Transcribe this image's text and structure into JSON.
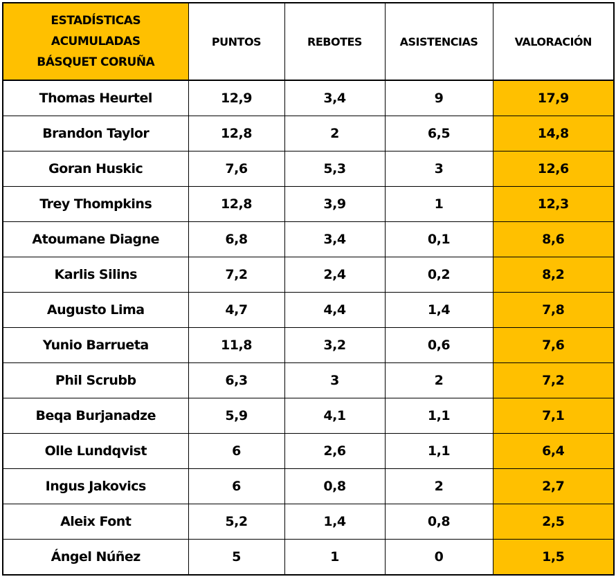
{
  "table_title": [
    "ESTADÍSTICAS",
    "ACUMULADAS",
    "BÁSQUET CORUÑA"
  ],
  "columns": [
    "PUNTOS",
    "REBOTES",
    "ASISTENCIAS",
    "VALORACIÓN"
  ],
  "highlight_color": "#ffc000",
  "rows": [
    {
      "player": "Thomas Heurtel",
      "puntos": "12,9",
      "rebotes": "3,4",
      "asistencias": "9",
      "valoracion": "17,9"
    },
    {
      "player": "Brandon Taylor",
      "puntos": "12,8",
      "rebotes": "2",
      "asistencias": "6,5",
      "valoracion": "14,8"
    },
    {
      "player": "Goran Huskic",
      "puntos": "7,6",
      "rebotes": "5,3",
      "asistencias": "3",
      "valoracion": "12,6"
    },
    {
      "player": "Trey Thompkins",
      "puntos": "12,8",
      "rebotes": "3,9",
      "asistencias": "1",
      "valoracion": "12,3"
    },
    {
      "player": "Atoumane Diagne",
      "puntos": "6,8",
      "rebotes": "3,4",
      "asistencias": "0,1",
      "valoracion": "8,6"
    },
    {
      "player": "Karlis Silins",
      "puntos": "7,2",
      "rebotes": "2,4",
      "asistencias": "0,2",
      "valoracion": "8,2"
    },
    {
      "player": "Augusto Lima",
      "puntos": "4,7",
      "rebotes": "4,4",
      "asistencias": "1,4",
      "valoracion": "7,8"
    },
    {
      "player": "Yunio Barrueta",
      "puntos": "11,8",
      "rebotes": "3,2",
      "asistencias": "0,6",
      "valoracion": "7,6"
    },
    {
      "player": "Phil Scrubb",
      "puntos": "6,3",
      "rebotes": "3",
      "asistencias": "2",
      "valoracion": "7,2"
    },
    {
      "player": "Beqa Burjanadze",
      "puntos": "5,9",
      "rebotes": "4,1",
      "asistencias": "1,1",
      "valoracion": "7,1"
    },
    {
      "player": "Olle Lundqvist",
      "puntos": "6",
      "rebotes": "2,6",
      "asistencias": "1,1",
      "valoracion": "6,4"
    },
    {
      "player": "Ingus Jakovics",
      "puntos": "6",
      "rebotes": "0,8",
      "asistencias": "2",
      "valoracion": "2,7"
    },
    {
      "player": "Aleix Font",
      "puntos": "5,2",
      "rebotes": "1,4",
      "asistencias": "0,8",
      "valoracion": "2,5"
    },
    {
      "player": "Ángel Núñez",
      "puntos": "5",
      "rebotes": "1",
      "asistencias": "0",
      "valoracion": "1,5"
    }
  ],
  "chart_data": {
    "type": "table",
    "columns": [
      "ESTADÍSTICAS ACUMULADAS BÁSQUET CORUÑA",
      "PUNTOS",
      "REBOTES",
      "ASISTENCIAS",
      "VALORACIÓN"
    ],
    "rows": [
      [
        "Thomas Heurtel",
        12.9,
        3.4,
        9,
        17.9
      ],
      [
        "Brandon Taylor",
        12.8,
        2,
        6.5,
        14.8
      ],
      [
        "Goran Huskic",
        7.6,
        5.3,
        3,
        12.6
      ],
      [
        "Trey Thompkins",
        12.8,
        3.9,
        1,
        12.3
      ],
      [
        "Atoumane Diagne",
        6.8,
        3.4,
        0.1,
        8.6
      ],
      [
        "Karlis Silins",
        7.2,
        2.4,
        0.2,
        8.2
      ],
      [
        "Augusto Lima",
        4.7,
        4.4,
        1.4,
        7.8
      ],
      [
        "Yunio Barrueta",
        11.8,
        3.2,
        0.6,
        7.6
      ],
      [
        "Phil Scrubb",
        6.3,
        3,
        2,
        7.2
      ],
      [
        "Beqa Burjanadze",
        5.9,
        4.1,
        1.1,
        7.1
      ],
      [
        "Olle Lundqvist",
        6,
        2.6,
        1.1,
        6.4
      ],
      [
        "Ingus Jakovics",
        6,
        0.8,
        2,
        2.7
      ],
      [
        "Aleix Font",
        5.2,
        1.4,
        0.8,
        2.5
      ],
      [
        "Ángel Núñez",
        5,
        1,
        0,
        1.5
      ]
    ]
  }
}
